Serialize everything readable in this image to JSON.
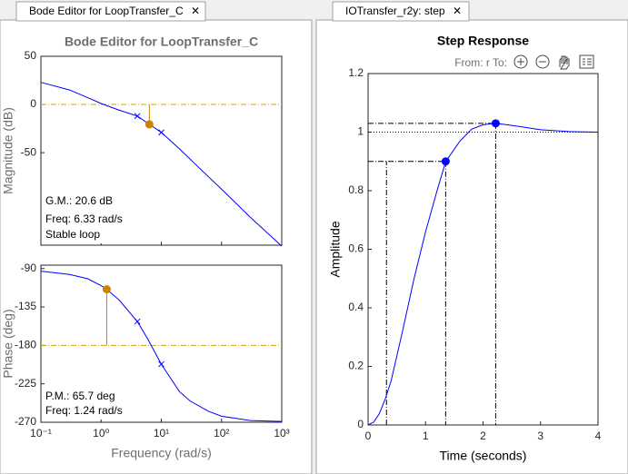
{
  "tabs": [
    "Bode Editor for LoopTransfer_C",
    "IOTransfer_r2y: step"
  ],
  "chart_data": [
    {
      "type": "line",
      "title": "Bode Editor for LoopTransfer_C",
      "ylabel": "Magnitude (dB)",
      "xscale": "log",
      "xlim": [
        0.1,
        1000
      ],
      "ylim": [
        -146,
        50
      ],
      "xticks": [
        0.1,
        1,
        10,
        100,
        1000
      ],
      "xtick_labels": false,
      "yticks": [
        -50,
        0,
        50
      ],
      "color": "#0000ff",
      "x": [
        0.1,
        0.3,
        0.6,
        1,
        2,
        4,
        6.33,
        10,
        20,
        50,
        100,
        300,
        1000
      ],
      "values": [
        23,
        15,
        7,
        1,
        -6,
        -12,
        -20.6,
        -29,
        -46,
        -70,
        -88,
        -117,
        -147
      ],
      "pole_zero_markers": {
        "x": [
          4,
          10
        ],
        "values": [
          -12,
          -29
        ]
      },
      "margin_point": {
        "x": 6.33,
        "y": -20.6
      },
      "reference_level": 0,
      "margin_color": "#d9a400",
      "annotations": [
        "G.M.: 20.6 dB",
        "Freq: 6.33 rad/s",
        "Stable loop"
      ]
    },
    {
      "type": "line",
      "ylabel": "Phase (deg)",
      "xlabel": "Frequency (rad/s)",
      "xscale": "log",
      "xlim": [
        0.1,
        1000
      ],
      "ylim": [
        -270,
        -86
      ],
      "xticks": [
        {
          "value": 0.1,
          "label": "10⁻¹"
        },
        {
          "value": 1,
          "label": "10⁰"
        },
        {
          "value": 10,
          "label": "10¹"
        },
        {
          "value": 100,
          "label": "10²"
        },
        {
          "value": 1000,
          "label": "10³"
        }
      ],
      "xtick_labels": true,
      "yticks": [
        -270,
        -225,
        -180,
        -135,
        -90
      ],
      "color": "#0000ff",
      "x": [
        0.1,
        0.3,
        0.6,
        1,
        1.24,
        2,
        4,
        6,
        10,
        20,
        30,
        60,
        100,
        300,
        1000
      ],
      "values": [
        -93,
        -97,
        -102,
        -110,
        -114.3,
        -127,
        -152,
        -173,
        -202,
        -234,
        -245,
        -257,
        -263,
        -268,
        -269
      ],
      "pole_zero_markers": {
        "x": [
          4,
          10
        ],
        "values": [
          -152,
          -202
        ]
      },
      "margin_point": {
        "x": 1.24,
        "y": -114.3
      },
      "reference_level": -180,
      "margin_color": "#d9a400",
      "annotations": [
        "P.M.: 65.7 deg",
        "Freq: 1.24 rad/s"
      ]
    },
    {
      "type": "line",
      "title": "Step Response",
      "io_label": "From: r  To:",
      "xlabel": "Time (seconds)",
      "ylabel": "Amplitude",
      "xscale": "linear",
      "xlim": [
        0,
        4
      ],
      "ylim": [
        0,
        1.2
      ],
      "xticks": [
        0,
        1,
        2,
        3,
        4
      ],
      "xtick_labels": true,
      "yticks": [
        0,
        0.2,
        0.4,
        0.6,
        0.8,
        1,
        1.2
      ],
      "color": "#0000ff",
      "x": [
        0,
        0.1,
        0.2,
        0.3,
        0.4,
        0.6,
        0.8,
        1.0,
        1.2,
        1.35,
        1.6,
        1.8,
        2.0,
        2.22,
        2.6,
        3.0,
        3.5,
        4
      ],
      "values": [
        0,
        0.01,
        0.04,
        0.09,
        0.15,
        0.32,
        0.5,
        0.66,
        0.8,
        0.9,
        0.97,
        1.01,
        1.025,
        1.03,
        1.02,
        1.008,
        1.002,
        1.0
      ],
      "characteristic_points": {
        "x": [
          1.35,
          2.22
        ],
        "values": [
          0.9,
          1.03
        ]
      },
      "rise_start": {
        "x": 0.32,
        "y": 0.9
      },
      "steady_state": 1
    }
  ]
}
